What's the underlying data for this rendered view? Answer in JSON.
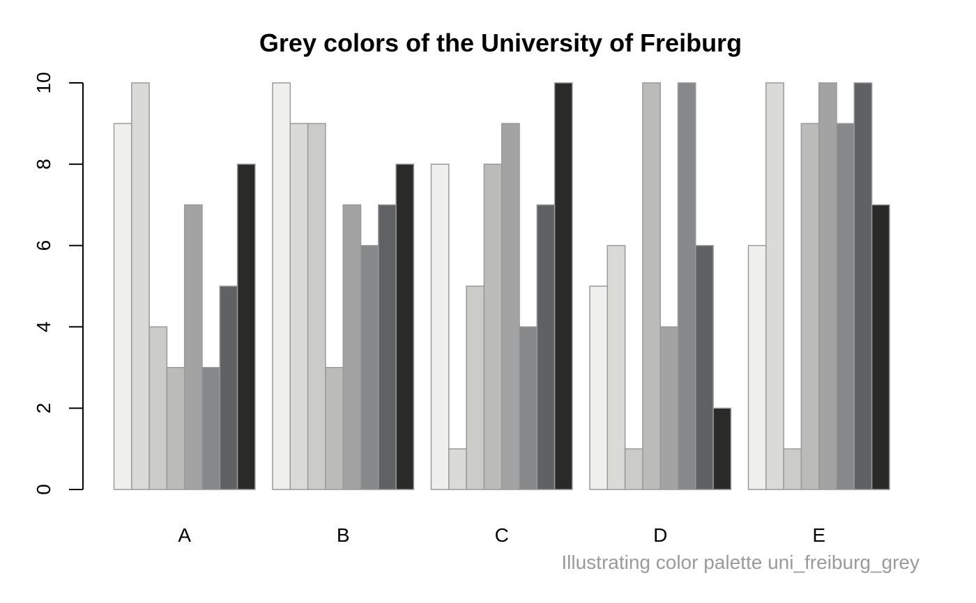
{
  "chart_data": {
    "type": "bar",
    "mode": "grouped",
    "title": "Grey colors of the University of Freiburg",
    "caption": "Illustrating color palette uni_freiburg_grey",
    "categories": [
      "A",
      "B",
      "C",
      "D",
      "E"
    ],
    "ylim": [
      0,
      10
    ],
    "yticks": [
      0,
      2,
      4,
      6,
      8,
      10
    ],
    "grid": false,
    "legend": "none",
    "bar_border_color": "#999999",
    "palette": [
      "#efefee",
      "#dadad6",
      "#cbccc8",
      "#bbbbba",
      "#a2a3a2",
      "#878889",
      "#5f6163",
      "#2a2a28"
    ],
    "series": [
      {
        "values": [
          9,
          10,
          8,
          5,
          6
        ]
      },
      {
        "values": [
          10,
          9,
          1,
          6,
          10
        ]
      },
      {
        "values": [
          4,
          9,
          5,
          1,
          1
        ]
      },
      {
        "values": [
          3,
          3,
          8,
          10,
          9
        ]
      },
      {
        "values": [
          7,
          7,
          9,
          4,
          10
        ]
      },
      {
        "values": [
          3,
          6,
          4,
          10,
          9
        ]
      },
      {
        "values": [
          5,
          7,
          7,
          6,
          10
        ]
      },
      {
        "values": [
          8,
          8,
          10,
          2,
          7
        ]
      }
    ]
  }
}
